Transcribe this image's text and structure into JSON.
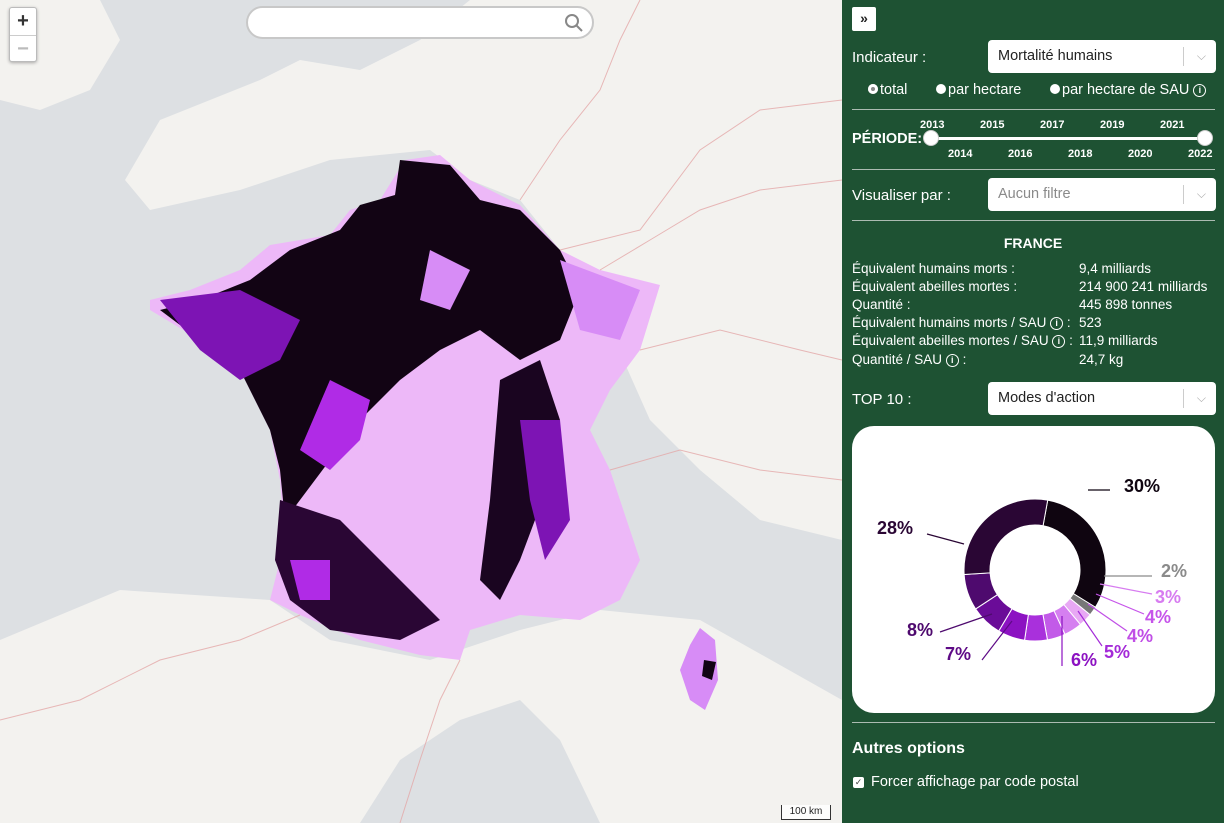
{
  "map": {
    "search": {
      "value": "",
      "placeholder": ""
    },
    "zoom": {
      "in_label": "+",
      "out_label": "−"
    },
    "scale_label": "100 km",
    "legend_colors": {
      "darkest": "#120414",
      "dark": "#3a0a48",
      "mid": "#7d14b4",
      "purple": "#b02be6",
      "light": "#d78cf6",
      "lightest": "#edb8f8"
    }
  },
  "panel": {
    "collapse_label": "»",
    "indicator": {
      "label": "Indicateur :",
      "selected": "Mortalité humains"
    },
    "radios": [
      {
        "label": "total",
        "selected": true
      },
      {
        "label": "par hectare",
        "selected": false
      },
      {
        "label": "par hectare de SAU",
        "selected": false
      }
    ],
    "period": {
      "label": "PÉRIODE:",
      "years_top": [
        "2013",
        "2015",
        "2017",
        "2019",
        "2021"
      ],
      "years_bottom": [
        "2014",
        "2016",
        "2018",
        "2020",
        "2022"
      ],
      "range": [
        "2013",
        "2022"
      ]
    },
    "visualiser": {
      "label": "Visualiser par :",
      "selected": "Aucun filtre"
    },
    "country": "FRANCE",
    "stats": [
      {
        "label": "Équivalent humains morts :",
        "value": "9,4 milliards",
        "info": false
      },
      {
        "label": "Équivalent abeilles mortes :",
        "value": "214 900 241 milliards",
        "info": false
      },
      {
        "label": "Quantité :",
        "value": "445 898 tonnes",
        "info": false
      },
      {
        "label": "Équivalent humains morts / SAU",
        "value": "523",
        "info": true
      },
      {
        "label": "Équivalent abeilles mortes / SAU",
        "value": "11,9 milliards",
        "info": true
      },
      {
        "label": "Quantité / SAU",
        "value": "24,7 kg",
        "info": true
      }
    ],
    "top10": {
      "label": "TOP 10 :",
      "selected": "Modes d'action"
    },
    "other_options": {
      "title": "Autres options",
      "checkbox_label": "Forcer affichage par code postal",
      "checked": true
    }
  },
  "chart_data": {
    "type": "pie",
    "donut": true,
    "values": [
      30,
      2,
      3,
      4,
      4,
      5,
      6,
      7,
      8,
      28
    ],
    "labels": [
      "30%",
      "2%",
      "3%",
      "4%",
      "4%",
      "5%",
      "6%",
      "7%",
      "8%",
      "28%"
    ],
    "colors": [
      "#0f0510",
      "#777777",
      "#e8a8f4",
      "#d57ff0",
      "#c25ae8",
      "#a930dc",
      "#8c12c2",
      "#6a0c98",
      "#4e0a6e",
      "#2a0634"
    ]
  }
}
